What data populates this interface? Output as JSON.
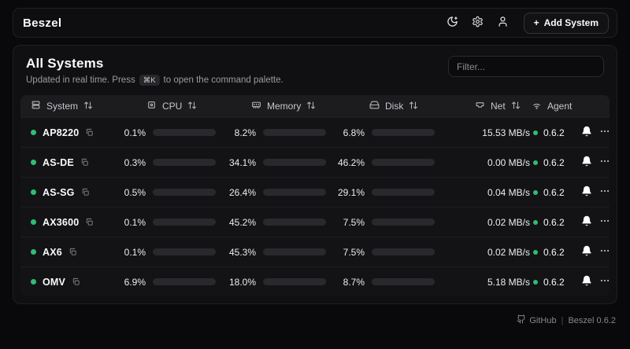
{
  "header": {
    "logo": "Beszel",
    "plus_icon": "+",
    "add_system_label": "Add System"
  },
  "main": {
    "title": "All Systems",
    "subtitle_prefix": "Updated in real time. Press",
    "kbd": "⌘K",
    "subtitle_suffix": "to open the command palette.",
    "filter_placeholder": "Filter..."
  },
  "table": {
    "columns": [
      {
        "label": "System",
        "icon": "server-icon",
        "sortable": true
      },
      {
        "label": "CPU",
        "icon": "cpu-icon",
        "sortable": true
      },
      {
        "label": "Memory",
        "icon": "memory-icon",
        "sortable": true
      },
      {
        "label": "Disk",
        "icon": "hard-drive-icon",
        "sortable": true
      },
      {
        "label": "Net",
        "icon": "ethernet-icon",
        "sortable": true
      },
      {
        "label": "Agent",
        "icon": "wifi-icon",
        "sortable": false
      }
    ],
    "rows": [
      {
        "name": "AP8220",
        "status": "up",
        "cpu": "0.1%",
        "cpu_pct": 0.1,
        "memory": "8.2%",
        "memory_pct": 8.2,
        "disk": "6.8%",
        "disk_pct": 6.8,
        "net": "15.53 MB/s",
        "agent": "0.6.2"
      },
      {
        "name": "AS-DE",
        "status": "up",
        "cpu": "0.3%",
        "cpu_pct": 0.3,
        "memory": "34.1%",
        "memory_pct": 34.1,
        "disk": "46.2%",
        "disk_pct": 46.2,
        "net": "0.00 MB/s",
        "agent": "0.6.2"
      },
      {
        "name": "AS-SG",
        "status": "up",
        "cpu": "0.5%",
        "cpu_pct": 0.5,
        "memory": "26.4%",
        "memory_pct": 26.4,
        "disk": "29.1%",
        "disk_pct": 29.1,
        "net": "0.04 MB/s",
        "agent": "0.6.2"
      },
      {
        "name": "AX3600",
        "status": "up",
        "cpu": "0.1%",
        "cpu_pct": 0.1,
        "memory": "45.2%",
        "memory_pct": 45.2,
        "disk": "7.5%",
        "disk_pct": 7.5,
        "net": "0.02 MB/s",
        "agent": "0.6.2"
      },
      {
        "name": "AX6",
        "status": "up",
        "cpu": "0.1%",
        "cpu_pct": 0.1,
        "memory": "45.3%",
        "memory_pct": 45.3,
        "disk": "7.5%",
        "disk_pct": 7.5,
        "net": "0.02 MB/s",
        "agent": "0.6.2"
      },
      {
        "name": "OMV",
        "status": "up",
        "cpu": "6.9%",
        "cpu_pct": 6.9,
        "memory": "18.0%",
        "memory_pct": 18.0,
        "disk": "8.7%",
        "disk_pct": 8.7,
        "net": "5.18 MB/s",
        "agent": "0.6.2"
      }
    ]
  },
  "footer": {
    "github_label": "GitHub",
    "divider": "|",
    "version_label": "Beszel 0.6.2"
  },
  "colors": {
    "accent_green": "#3fb862",
    "status_dot_green": "#2ebd74",
    "card_bg": "#101013",
    "page_bg": "#09090b"
  }
}
